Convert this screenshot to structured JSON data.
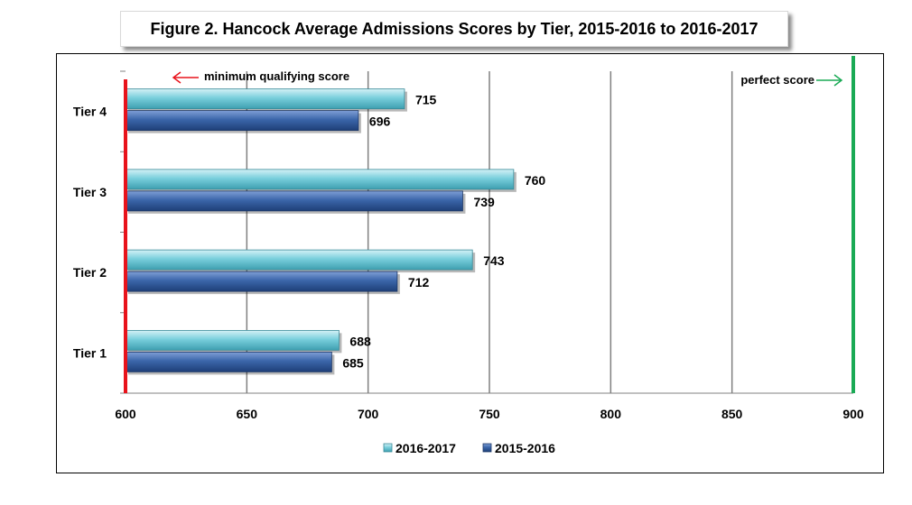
{
  "chart_data": {
    "type": "bar",
    "orientation": "horizontal",
    "title": "Figure 2. Hancock Average Admissions Scores by Tier, 2015-2016 to 2016-2017",
    "categories": [
      "Tier 4",
      "Tier 3",
      "Tier 2",
      "Tier 1"
    ],
    "series": [
      {
        "name": "2016-2017",
        "values": [
          715,
          760,
          743,
          688
        ],
        "color": "#6cc5d3"
      },
      {
        "name": "2015-2016",
        "values": [
          696,
          739,
          712,
          685
        ],
        "color": "#3a66a8"
      }
    ],
    "xlim": [
      600,
      900
    ],
    "x_ticks": [
      "600",
      "650",
      "700",
      "750",
      "800",
      "850",
      "900"
    ],
    "grid": true,
    "legend_position": "bottom",
    "reference_lines": [
      {
        "value": 600,
        "color": "#e8131b",
        "label": "minimum qualifying score",
        "arrow": "left"
      },
      {
        "value": 900,
        "color": "#1aaa55",
        "label": "perfect score",
        "arrow": "right"
      }
    ]
  }
}
